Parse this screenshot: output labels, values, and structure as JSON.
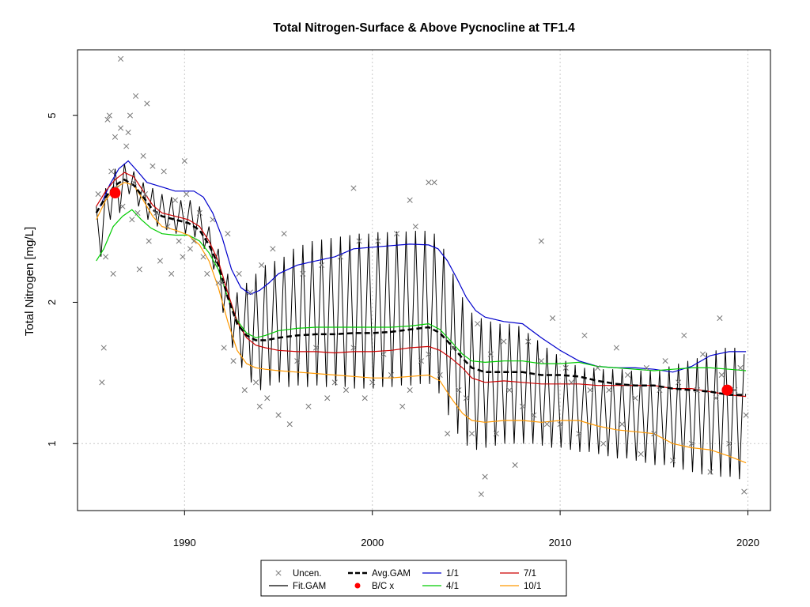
{
  "chart_data": {
    "type": "line",
    "title": "Total Nitrogen-Surface & Above Pycnocline at TF1.4",
    "xlabel": "",
    "ylabel": "Total Nitrogen [mg/L]",
    "x_ticks": [
      1990,
      2000,
      2010,
      2020
    ],
    "y_ticks": [
      1,
      2,
      5
    ],
    "y_scale": "log",
    "xlim": [
      1984.3,
      2021.2
    ],
    "ylim": [
      0.72,
      6.9
    ],
    "grid": "dotted lines at x ticks and y = 1",
    "legend_position": "bottom-center, outside plot",
    "legend": [
      {
        "label": "Uncen.",
        "style": "x-marker",
        "color": "#777777"
      },
      {
        "label": "Fit.GAM",
        "style": "line",
        "color": "#000000"
      },
      {
        "label": "Avg.GAM",
        "style": "dashed-thick",
        "color": "#000000"
      },
      {
        "label": "B/C x",
        "style": "dot",
        "color": "#ff0000"
      },
      {
        "label": "1/1",
        "style": "line",
        "color": "#0000cc"
      },
      {
        "label": "4/1",
        "style": "line",
        "color": "#00cc00"
      },
      {
        "label": "7/1",
        "style": "line",
        "color": "#cc0000"
      },
      {
        "label": "10/1",
        "style": "line",
        "color": "#ff9900"
      }
    ],
    "series": [
      {
        "name": "1/1",
        "color": "#0000cc",
        "x": [
          1985.5,
          1986.0,
          1986.5,
          1987.0,
          1987.5,
          1988.0,
          1988.5,
          1989.0,
          1989.5,
          1990.0,
          1990.5,
          1991.0,
          1991.5,
          1992.0,
          1992.5,
          1993.0,
          1993.5,
          1994.0,
          1994.5,
          1995.0,
          1996.0,
          1997.0,
          1998.0,
          1999.0,
          2000.0,
          2001.0,
          2002.0,
          2003.0,
          2003.5,
          2004.0,
          2004.5,
          2005.0,
          2005.5,
          2006.0,
          2007.0,
          2008.0,
          2009.0,
          2010.0,
          2011.0,
          2012.0,
          2013.0,
          2014.0,
          2015.0,
          2016.0,
          2017.0,
          2018.0,
          2019.0,
          2019.9
        ],
        "y": [
          3.2,
          3.55,
          3.85,
          4.0,
          3.8,
          3.6,
          3.55,
          3.5,
          3.45,
          3.45,
          3.45,
          3.35,
          3.1,
          2.75,
          2.35,
          2.15,
          2.08,
          2.12,
          2.2,
          2.3,
          2.4,
          2.45,
          2.5,
          2.6,
          2.62,
          2.64,
          2.66,
          2.65,
          2.6,
          2.45,
          2.25,
          2.05,
          1.92,
          1.86,
          1.82,
          1.8,
          1.68,
          1.58,
          1.5,
          1.46,
          1.45,
          1.45,
          1.44,
          1.42,
          1.46,
          1.54,
          1.57,
          1.57
        ]
      },
      {
        "name": "4/1",
        "color": "#00cc00",
        "x": [
          1985.3,
          1985.7,
          1986.2,
          1986.7,
          1987.2,
          1987.7,
          1988.2,
          1988.8,
          1989.5,
          1990.2,
          1990.8,
          1991.3,
          1991.8,
          1992.3,
          1992.8,
          1993.3,
          1993.8,
          1994.3,
          1995.0,
          1996.0,
          1997.0,
          1998.0,
          1999.0,
          2000.0,
          2001.0,
          2002.0,
          2003.0,
          2003.6,
          2004.2,
          2004.8,
          2005.3,
          2006.0,
          2007.0,
          2008.0,
          2009.0,
          2010.0,
          2011.0,
          2012.0,
          2013.0,
          2014.0,
          2015.0,
          2016.0,
          2017.0,
          2018.0,
          2019.0,
          2019.9
        ],
        "y": [
          2.45,
          2.6,
          2.9,
          3.05,
          3.15,
          3.0,
          2.88,
          2.8,
          2.78,
          2.78,
          2.7,
          2.55,
          2.35,
          2.05,
          1.83,
          1.72,
          1.68,
          1.7,
          1.74,
          1.76,
          1.77,
          1.77,
          1.77,
          1.77,
          1.77,
          1.78,
          1.8,
          1.75,
          1.65,
          1.55,
          1.5,
          1.49,
          1.5,
          1.5,
          1.48,
          1.48,
          1.49,
          1.46,
          1.45,
          1.44,
          1.43,
          1.44,
          1.45,
          1.45,
          1.44,
          1.43
        ]
      },
      {
        "name": "7/1",
        "color": "#cc0000",
        "x": [
          1985.3,
          1985.8,
          1986.3,
          1986.8,
          1987.3,
          1987.8,
          1988.3,
          1988.8,
          1989.5,
          1990.2,
          1990.8,
          1991.3,
          1991.8,
          1992.3,
          1992.8,
          1993.3,
          1993.8,
          1994.3,
          1995.0,
          1996.0,
          1997.0,
          1998.0,
          1999.0,
          2000.0,
          2001.0,
          2002.0,
          2003.0,
          2003.6,
          2004.2,
          2004.8,
          2005.3,
          2006.0,
          2007.0,
          2008.0,
          2009.0,
          2010.0,
          2011.0,
          2012.0,
          2013.0,
          2014.0,
          2015.0,
          2016.0,
          2017.0,
          2018.0,
          2019.0,
          2019.9
        ],
        "y": [
          3.2,
          3.45,
          3.65,
          3.78,
          3.7,
          3.45,
          3.22,
          3.1,
          3.05,
          3.0,
          2.9,
          2.7,
          2.45,
          2.1,
          1.82,
          1.68,
          1.62,
          1.6,
          1.58,
          1.57,
          1.57,
          1.56,
          1.57,
          1.57,
          1.58,
          1.6,
          1.61,
          1.58,
          1.52,
          1.45,
          1.38,
          1.35,
          1.36,
          1.35,
          1.34,
          1.34,
          1.34,
          1.33,
          1.33,
          1.33,
          1.33,
          1.31,
          1.31,
          1.29,
          1.27,
          1.26
        ]
      },
      {
        "name": "10/1",
        "color": "#ff9900",
        "x": [
          1985.3,
          1985.8,
          1986.3,
          1986.8,
          1987.3,
          1987.8,
          1988.3,
          1988.8,
          1989.5,
          1990.2,
          1990.8,
          1991.3,
          1991.8,
          1992.3,
          1992.8,
          1993.3,
          1993.8,
          1994.3,
          1995.0,
          1996.0,
          1997.0,
          1998.0,
          1999.0,
          2000.0,
          2001.0,
          2002.0,
          2003.0,
          2003.6,
          2004.2,
          2004.8,
          2005.3,
          2006.0,
          2007.0,
          2008.0,
          2009.0,
          2010.0,
          2011.0,
          2012.0,
          2013.0,
          2014.0,
          2015.0,
          2016.0,
          2017.0,
          2018.0,
          2019.0,
          2019.9
        ],
        "y": [
          3.0,
          3.3,
          3.5,
          3.6,
          3.55,
          3.3,
          3.05,
          2.9,
          2.85,
          2.78,
          2.65,
          2.45,
          2.15,
          1.82,
          1.58,
          1.48,
          1.45,
          1.44,
          1.43,
          1.42,
          1.41,
          1.4,
          1.39,
          1.38,
          1.38,
          1.39,
          1.4,
          1.36,
          1.25,
          1.16,
          1.12,
          1.11,
          1.12,
          1.12,
          1.11,
          1.12,
          1.12,
          1.09,
          1.07,
          1.06,
          1.05,
          1.0,
          0.98,
          0.97,
          0.94,
          0.91
        ]
      },
      {
        "name": "Avg.GAM",
        "color": "#000000",
        "dashed": true,
        "x": [
          1985.3,
          1985.8,
          1986.3,
          1986.8,
          1987.3,
          1987.8,
          1988.3,
          1988.8,
          1989.5,
          1990.2,
          1990.8,
          1991.3,
          1991.8,
          1992.3,
          1992.8,
          1993.3,
          1993.8,
          1994.3,
          1995.0,
          1996.0,
          1997.0,
          1998.0,
          1999.0,
          2000.0,
          2001.0,
          2002.0,
          2003.0,
          2003.6,
          2004.2,
          2004.8,
          2005.3,
          2006.0,
          2007.0,
          2008.0,
          2009.0,
          2010.0,
          2011.0,
          2012.0,
          2013.0,
          2014.0,
          2015.0,
          2016.0,
          2017.0,
          2018.0,
          2019.0,
          2019.9
        ],
        "y": [
          3.1,
          3.35,
          3.55,
          3.65,
          3.55,
          3.35,
          3.15,
          3.05,
          3.0,
          2.95,
          2.85,
          2.65,
          2.4,
          2.05,
          1.8,
          1.7,
          1.66,
          1.66,
          1.68,
          1.7,
          1.71,
          1.71,
          1.72,
          1.72,
          1.73,
          1.75,
          1.77,
          1.72,
          1.62,
          1.52,
          1.45,
          1.42,
          1.42,
          1.42,
          1.4,
          1.4,
          1.39,
          1.36,
          1.34,
          1.33,
          1.33,
          1.31,
          1.3,
          1.29,
          1.27,
          1.27
        ]
      },
      {
        "name": "B/C x",
        "color": "#ff0000",
        "x": [
          1986.3,
          2018.9
        ],
        "y": [
          3.42,
          1.3
        ]
      }
    ],
    "fit_gam_seasonal": {
      "color": "#000000",
      "x": [
        1985.3,
        1985.55,
        1985.8,
        1986.05,
        1986.3,
        1986.55,
        1986.8,
        1987.05,
        1987.3,
        1987.55,
        1987.8,
        1988.05,
        1988.3,
        1988.55,
        1988.8,
        1989.05,
        1989.3,
        1989.55,
        1989.8,
        1990.05,
        1990.3,
        1990.55,
        1990.8,
        1991.05,
        1991.3,
        1991.55,
        1991.8,
        1992.05,
        1992.3,
        1992.55,
        1992.8,
        1993.05,
        1993.3,
        1993.55,
        1993.8,
        1994.05,
        1994.3,
        1994.55,
        1994.8,
        1995.05,
        1995.3,
        1995.55,
        1995.8,
        1996.05,
        1996.3,
        1996.55,
        1996.8,
        1997.05,
        1997.3,
        1997.55,
        1997.8,
        1998.05,
        1998.3,
        1998.55,
        1998.8,
        1999.05,
        1999.3,
        1999.55,
        1999.8,
        2000.05,
        2000.3,
        2000.55,
        2000.8,
        2001.05,
        2001.3,
        2001.55,
        2001.8,
        2002.05,
        2002.3,
        2002.55,
        2002.8,
        2003.05,
        2003.3,
        2003.55,
        2003.8,
        2004.05,
        2004.3,
        2004.55,
        2004.8,
        2005.05,
        2005.3,
        2005.55,
        2005.8,
        2006.05,
        2006.3,
        2006.55,
        2006.8,
        2007.05,
        2007.3,
        2007.55,
        2007.8,
        2008.05,
        2008.3,
        2008.55,
        2008.8,
        2009.05,
        2009.3,
        2009.55,
        2009.8,
        2010.05,
        2010.3,
        2010.55,
        2010.8,
        2011.05,
        2011.3,
        2011.55,
        2011.8,
        2012.05,
        2012.3,
        2012.55,
        2012.8,
        2013.05,
        2013.3,
        2013.55,
        2013.8,
        2014.05,
        2014.3,
        2014.55,
        2014.8,
        2015.05,
        2015.3,
        2015.55,
        2015.8,
        2016.05,
        2016.3,
        2016.55,
        2016.8,
        2017.05,
        2017.3,
        2017.55,
        2017.8,
        2018.05,
        2018.3,
        2018.55,
        2018.8,
        2019.05,
        2019.3,
        2019.55,
        2019.8
      ],
      "y": [
        3.2,
        2.5,
        3.5,
        3.0,
        3.85,
        3.1,
        3.95,
        3.4,
        3.8,
        3.2,
        3.6,
        3.0,
        3.5,
        2.9,
        3.4,
        2.85,
        3.35,
        2.8,
        3.3,
        2.8,
        3.3,
        2.75,
        3.2,
        2.6,
        2.9,
        2.35,
        2.6,
        1.9,
        2.3,
        1.6,
        2.1,
        1.45,
        2.2,
        1.35,
        2.3,
        1.3,
        2.4,
        1.33,
        2.45,
        1.35,
        2.5,
        1.32,
        2.6,
        1.33,
        2.65,
        1.32,
        2.7,
        1.33,
        2.72,
        1.32,
        2.74,
        1.33,
        2.76,
        1.32,
        2.78,
        1.31,
        2.8,
        1.31,
        2.8,
        1.31,
        2.82,
        1.32,
        2.82,
        1.32,
        2.83,
        1.33,
        2.83,
        1.33,
        2.84,
        1.34,
        2.84,
        1.34,
        2.8,
        1.28,
        2.6,
        1.15,
        2.3,
        1.05,
        2.05,
        0.99,
        1.9,
        0.97,
        1.85,
        0.98,
        1.82,
        0.99,
        1.8,
        1.0,
        1.8,
        1.0,
        1.78,
        1.0,
        1.72,
        1.0,
        1.66,
        0.99,
        1.6,
        0.98,
        1.55,
        0.98,
        1.5,
        0.97,
        1.47,
        0.96,
        1.45,
        0.96,
        1.45,
        0.95,
        1.44,
        0.94,
        1.44,
        0.93,
        1.44,
        0.93,
        1.43,
        0.92,
        1.43,
        0.91,
        1.43,
        0.9,
        1.43,
        0.9,
        1.46,
        0.89,
        1.48,
        0.88,
        1.5,
        0.87,
        1.52,
        0.86,
        1.56,
        0.86,
        1.58,
        0.85,
        1.6,
        0.85,
        1.6,
        0.84,
        1.55
      ]
    },
    "scatter_uncen": {
      "name": "Uncen.",
      "marker": "x",
      "color": "#777777",
      "x": [
        1985.4,
        1985.6,
        1985.8,
        1985.9,
        1986.1,
        1986.2,
        1986.4,
        1986.6,
        1986.7,
        1986.9,
        1987.0,
        1987.2,
        1987.3,
        1987.5,
        1987.6,
        1987.8,
        1987.9,
        1988.1,
        1988.3,
        1988.5,
        1988.7,
        1988.9,
        1989.1,
        1989.3,
        1989.5,
        1989.7,
        1989.9,
        1990.1,
        1990.3,
        1990.5,
        1990.8,
        1991.0,
        1991.2,
        1991.5,
        1991.8,
        1992.1,
        1992.3,
        1992.6,
        1992.9,
        1993.2,
        1993.5,
        1993.8,
        1994.1,
        1994.4,
        1994.7,
        1995.0,
        1995.3,
        1995.6,
        1996.0,
        1996.3,
        1996.6,
        1997.0,
        1997.3,
        1997.6,
        1998.0,
        1998.3,
        1998.6,
        1999.0,
        1999.3,
        1999.6,
        2000.0,
        2000.3,
        2000.6,
        2001.0,
        2001.3,
        2001.6,
        2002.0,
        2002.3,
        2002.6,
        2003.0,
        2003.3,
        2003.6,
        2004.0,
        2004.3,
        2004.6,
        2005.0,
        2005.3,
        2005.6,
        2006.0,
        2006.3,
        2006.6,
        2007.0,
        2007.3,
        2007.6,
        2008.0,
        2008.3,
        2008.6,
        2009.0,
        2009.3,
        2009.6,
        2010.0,
        2010.3,
        2010.6,
        2011.0,
        2011.3,
        2011.6,
        2012.0,
        2012.3,
        2012.6,
        2013.0,
        2013.3,
        2013.6,
        2014.0,
        2014.3,
        2014.6,
        2015.0,
        2015.3,
        2015.6,
        2016.0,
        2016.3,
        2016.6,
        2017.0,
        2017.3,
        2017.6,
        2018.0,
        2018.3,
        2018.6,
        2019.0,
        2019.3,
        2019.6,
        2019.9,
        1986.6,
        1987.1,
        1987.4,
        1988.0,
        1986.0,
        1985.7,
        1986.3,
        1990.0,
        1992.0,
        1994.0,
        1999.0,
        2002.0,
        2003.0,
        2005.8,
        2009.0,
        2018.5,
        2019.8
      ],
      "y": [
        3.4,
        1.35,
        2.5,
        4.9,
        3.8,
        2.3,
        3.5,
        4.7,
        3.2,
        4.3,
        4.6,
        3.0,
        3.6,
        3.1,
        2.35,
        4.1,
        3.4,
        2.7,
        3.9,
        3.1,
        2.45,
        3.8,
        2.9,
        2.3,
        3.3,
        2.7,
        2.5,
        3.4,
        2.6,
        2.7,
        3.1,
        2.5,
        2.3,
        3.0,
        2.2,
        1.6,
        2.8,
        1.5,
        2.3,
        1.3,
        2.1,
        1.35,
        2.4,
        1.25,
        2.6,
        1.15,
        2.8,
        1.1,
        1.5,
        2.3,
        1.2,
        1.6,
        2.4,
        1.25,
        1.35,
        2.5,
        1.3,
        1.6,
        2.7,
        1.25,
        1.35,
        2.7,
        1.55,
        1.4,
        2.8,
        1.2,
        1.3,
        2.9,
        1.5,
        1.55,
        3.6,
        1.4,
        1.05,
        1.6,
        1.3,
        1.25,
        1.05,
        1.8,
        0.85,
        1.55,
        1.05,
        1.65,
        1.3,
        0.9,
        1.2,
        1.65,
        1.15,
        1.5,
        1.1,
        1.85,
        1.1,
        1.45,
        1.35,
        1.05,
        1.7,
        1.3,
        1.45,
        1.0,
        1.3,
        1.6,
        1.1,
        1.4,
        1.25,
        0.95,
        1.45,
        1.05,
        1.3,
        1.5,
        0.92,
        1.35,
        1.7,
        1.0,
        1.3,
        1.55,
        0.87,
        1.25,
        1.4,
        1.0,
        1.3,
        1.45,
        1.15,
        6.6,
        5.0,
        5.5,
        5.3,
        5.0,
        1.6,
        4.5,
        4.0,
        2.2,
        1.2,
        3.5,
        3.3,
        3.6,
        0.78,
        2.7,
        1.85,
        0.79
      ]
    }
  }
}
